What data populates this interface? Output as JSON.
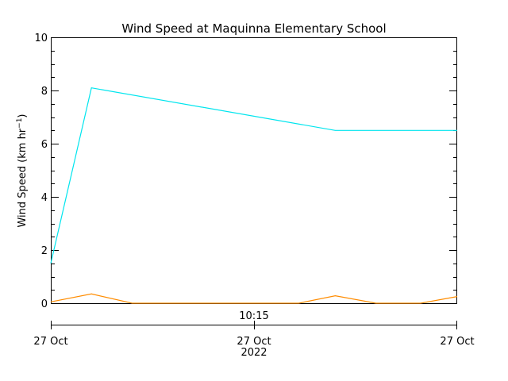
{
  "chart_data": {
    "type": "line",
    "title": "Wind Speed at Maquinna Elementary School",
    "ylabel_main": "Wind Speed (km hr",
    "ylabel_sup": "−1",
    "ylabel_close": ")",
    "ylim": [
      0,
      10
    ],
    "ytick_labels": [
      "0",
      "2",
      "4",
      "6",
      "8",
      "10"
    ],
    "xlim_minutes": [
      0,
      50
    ],
    "x_unit": "minutes from start of axis",
    "x_axis_top_label": "10:15",
    "x_axis_bottom_labels": [
      "27 Oct",
      "27 Oct",
      "27 Oct"
    ],
    "x_axis_year": "2022",
    "grid": false,
    "series": [
      {
        "color": "#00e5ee",
        "x": [
          0,
          5,
          35,
          50
        ],
        "values": [
          1.5,
          8.1,
          6.5,
          6.5
        ]
      },
      {
        "color": "#ff8c00",
        "x": [
          0,
          5,
          10,
          30.5,
          35,
          40,
          45.5,
          50
        ],
        "values": [
          0.05,
          0.35,
          0.0,
          0.0,
          0.28,
          0.0,
          0.0,
          0.25
        ]
      }
    ]
  }
}
